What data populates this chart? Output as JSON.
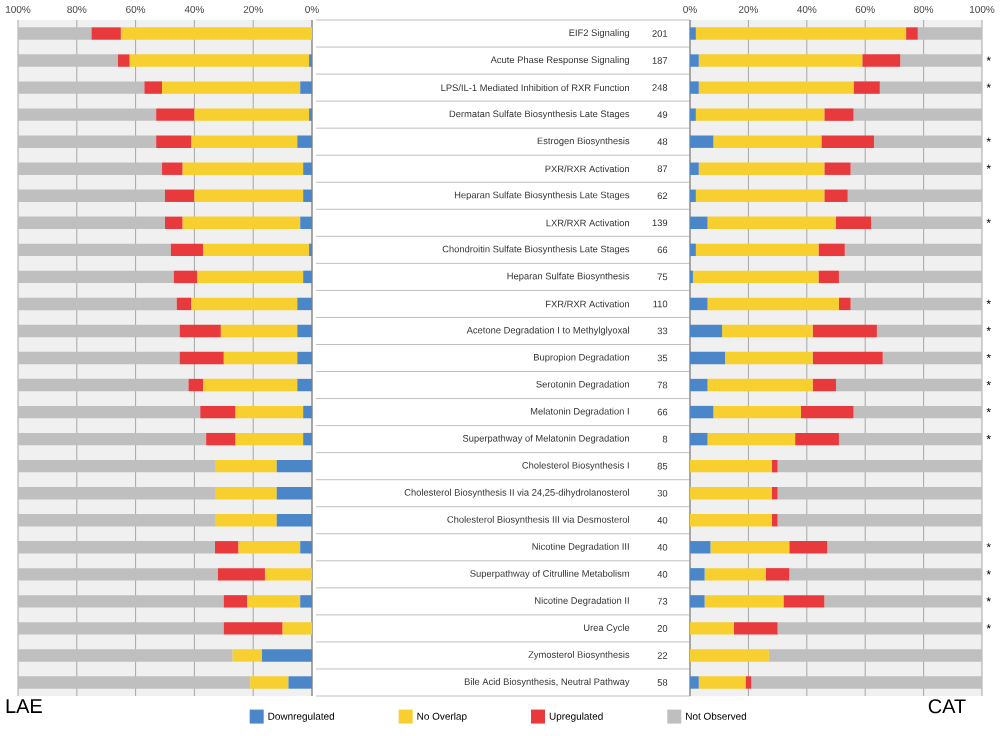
{
  "chart_data": [
    {
      "type": "bar",
      "title": "LAE",
      "orientation": "horizontal",
      "stacked": true,
      "grid": "x",
      "categories": [
        null,
        null,
        null,
        null,
        null,
        null,
        null,
        null,
        null,
        null,
        null,
        null,
        null,
        null,
        null,
        null,
        null,
        null,
        null,
        null,
        null,
        null,
        null,
        null,
        null
      ],
      "xlim": [
        100,
        0
      ],
      "xticks": [
        {
          "value": 100,
          "label": "100%"
        },
        {
          "value": 80,
          "label": "80%"
        },
        {
          "value": 60,
          "label": "60%"
        },
        {
          "value": 40,
          "label": "40%"
        },
        {
          "value": 20,
          "label": "20%"
        },
        {
          "value": 0,
          "label": "0%"
        }
      ],
      "series": [
        {
          "color": "#4a86c8",
          "values": [
            0,
            1,
            4,
            1,
            5,
            3,
            3,
            4,
            1,
            3,
            5,
            5,
            5,
            5,
            3,
            3,
            12,
            12,
            12,
            4,
            0,
            4,
            0,
            17,
            8
          ]
        },
        {
          "color": "#f7cf2f",
          "values": [
            65,
            61,
            47,
            39,
            36,
            41,
            37,
            40,
            36,
            36,
            36,
            26,
            25,
            32,
            23,
            23,
            21,
            21,
            21,
            21,
            16,
            18,
            10,
            10,
            13
          ]
        },
        {
          "color": "#e8393d",
          "values": [
            10,
            4,
            6,
            13,
            12,
            7,
            10,
            6,
            11,
            8,
            5,
            14,
            15,
            5,
            12,
            10,
            0,
            0,
            0,
            8,
            16,
            8,
            20,
            0,
            0
          ]
        },
        {
          "color": "#bfbfbf",
          "values": [
            25,
            34,
            43,
            47,
            47,
            49,
            50,
            50,
            52,
            53,
            54,
            55,
            55,
            58,
            62,
            64,
            67,
            67,
            67,
            67,
            68,
            70,
            70,
            73,
            79
          ]
        }
      ]
    },
    {
      "type": "bar",
      "title": "CAT",
      "orientation": "horizontal",
      "stacked": true,
      "grid": "x",
      "legend": "bottom",
      "categories": [
        "EIF2 Signaling",
        "Acute Phase Response Signaling",
        "LPS/IL-1 Mediated Inhibition of RXR Function",
        "Dermatan Sulfate Biosynthesis Late Stages",
        "Estrogen Biosynthesis",
        "PXR/RXR Activation",
        "Heparan Sulfate Biosynthesis Late Stages",
        "LXR/RXR Activation",
        "Chondroitin Sulfate Biosynthesis Late Stages",
        "Heparan Sulfate Biosynthesis",
        "FXR/RXR Activation",
        "Acetone Degradation I to Methylglyoxal",
        "Bupropion Degradation",
        "Serotonin Degradation",
        "Melatonin Degradation I",
        "Superpathway of Melatonin Degradation",
        "Cholesterol Biosynthesis I",
        "Cholesterol Biosynthesis II via 24,25-dihydrolanosterol",
        "Cholesterol Biosynthesis III via Desmosterol",
        "Nicotine Degradation III",
        "Superpathway of Citrulline Metabolism",
        "Nicotine Degradation II",
        "Urea Cycle",
        "Zymosterol Biosynthesis",
        "Bile Acid Biosynthesis, Neutral Pathway"
      ],
      "xlim": [
        0,
        100
      ],
      "xticks": [
        {
          "value": 0,
          "label": "0%"
        },
        {
          "value": 20,
          "label": "20%"
        },
        {
          "value": 40,
          "label": "40%"
        },
        {
          "value": 60,
          "label": "60%"
        },
        {
          "value": 80,
          "label": "80%"
        },
        {
          "value": 100,
          "label": "100%"
        }
      ],
      "series": [
        {
          "name": "Downregulated",
          "color": "#4a86c8",
          "values": [
            2,
            3,
            3,
            2,
            8,
            3,
            2,
            6,
            2,
            1,
            6,
            11,
            12,
            6,
            8,
            6,
            0,
            0,
            0,
            7,
            5,
            5,
            0,
            0,
            3
          ]
        },
        {
          "name": "No Overlap",
          "color": "#f7cf2f",
          "values": [
            72,
            56,
            53,
            44,
            37,
            43,
            44,
            44,
            42,
            43,
            45,
            31,
            30,
            36,
            30,
            30,
            28,
            28,
            28,
            27,
            21,
            27,
            15,
            27,
            16
          ]
        },
        {
          "name": "Upregulated",
          "color": "#e8393d",
          "values": [
            4,
            13,
            9,
            10,
            18,
            9,
            8,
            12,
            9,
            7,
            4,
            22,
            24,
            8,
            18,
            15,
            2,
            2,
            2,
            13,
            8,
            14,
            15,
            0,
            2
          ]
        },
        {
          "name": "Not Observed",
          "color": "#bfbfbf",
          "values": [
            22,
            28,
            35,
            44,
            37,
            45,
            46,
            38,
            47,
            49,
            45,
            36,
            34,
            50,
            44,
            49,
            70,
            70,
            70,
            53,
            66,
            54,
            70,
            73,
            79
          ]
        }
      ],
      "annotations": [
        "201",
        "187",
        "248",
        "49",
        "48",
        "87",
        "62",
        "139",
        "66",
        "75",
        "110",
        "33",
        "35",
        "78",
        "66",
        "8",
        "85",
        "30",
        "40",
        "40",
        "40",
        "73",
        "20",
        "22",
        "58",
        {
          "text": "*",
          "y": "Acute Phase Response Signaling"
        },
        {
          "text": "*",
          "y": "LPS/IL-1 Mediated Inhibition of RXR Function"
        },
        {
          "text": "*",
          "y": "Estrogen Biosynthesis"
        },
        {
          "text": "*",
          "y": "PXR/RXR Activation"
        },
        {
          "text": "*",
          "y": "LXR/RXR Activation"
        },
        {
          "text": "*",
          "y": "FXR/RXR Activation"
        },
        {
          "text": "*",
          "y": "Acetone Degradation I to Methylglyoxal"
        },
        {
          "text": "*",
          "y": "Bupropion Degradation"
        },
        {
          "text": "*",
          "y": "Serotonin Degradation"
        },
        {
          "text": "*",
          "y": "Melatonin Degradation I"
        },
        {
          "text": "*",
          "y": "Superpathway of Melatonin Degradation"
        },
        {
          "text": "*",
          "y": "Nicotine Degradation III"
        },
        {
          "text": "*",
          "y": "Superpathway of Citrulline Metabolism"
        },
        {
          "text": "*",
          "y": "Nicotine Degradation II"
        },
        {
          "text": "*",
          "y": "Urea Cycle"
        }
      ]
    }
  ]
}
